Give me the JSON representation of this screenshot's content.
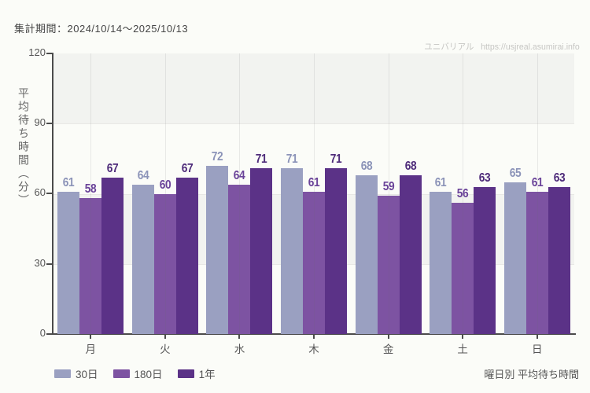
{
  "header": {
    "period_label": "集計期間：2024/10/14～2025/10/13"
  },
  "watermark": {
    "site_name": "ユニバリアル",
    "url": "https://usjreal.asumirai.info"
  },
  "footer": {
    "caption": "曜日別 平均待ち時間"
  },
  "chart_data": {
    "type": "bar",
    "title": "曜日別 平均待ち時間",
    "ylabel": "平均待ち時間（分）",
    "xlabel": "",
    "categories": [
      "月",
      "火",
      "水",
      "木",
      "金",
      "土",
      "日"
    ],
    "series": [
      {
        "name": "30日",
        "color": "#9aa0c1",
        "label_color": "#8b93b8",
        "values": [
          61,
          64,
          72,
          71,
          68,
          61,
          65
        ]
      },
      {
        "name": "180日",
        "color": "#7d53a2",
        "label_color": "#6a4399",
        "values": [
          58,
          60,
          64,
          61,
          59,
          56,
          61
        ]
      },
      {
        "name": "1年",
        "color": "#5b3287",
        "label_color": "#4e2b7a",
        "values": [
          67,
          67,
          71,
          71,
          68,
          63,
          63
        ]
      }
    ],
    "ylim": [
      0,
      120
    ],
    "y_ticks": [
      0,
      30,
      60,
      90,
      120
    ],
    "legend_position": "bottom-left",
    "band_color": "#f2f3f0",
    "grid": "vertical lines at category centers, alternating horizontal bands"
  }
}
